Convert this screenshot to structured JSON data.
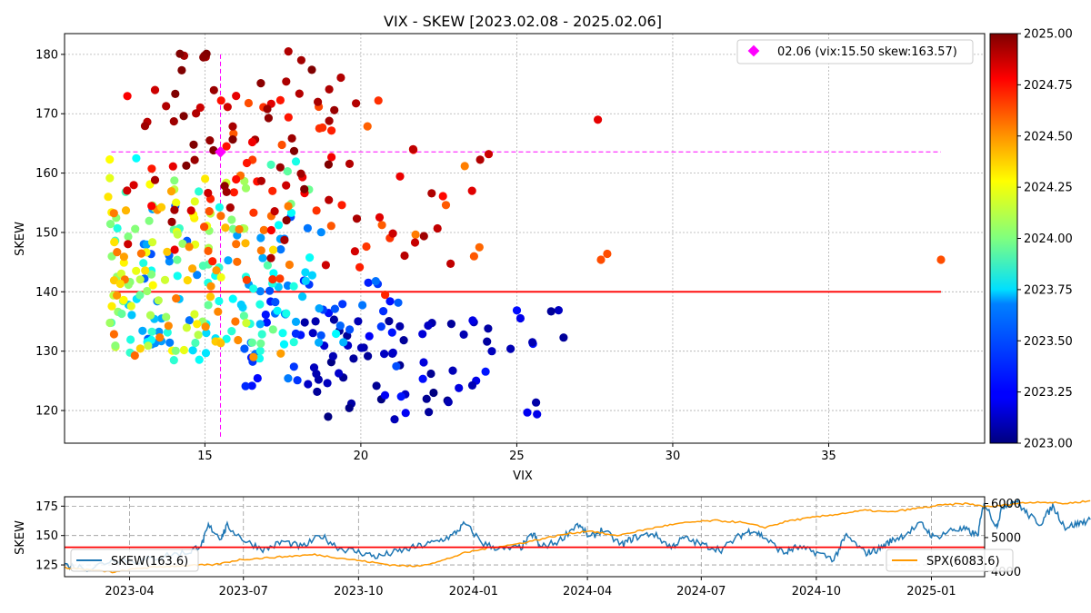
{
  "chart_data": [
    {
      "type": "scatter",
      "title": "VIX - SKEW [2023.02.08 - 2025.02.06]",
      "xlabel": "VIX",
      "ylabel": "SKEW",
      "xlim": [
        10.5,
        40
      ],
      "ylim": [
        114.5,
        183.5
      ],
      "xticks": [
        15,
        20,
        25,
        30,
        35
      ],
      "yticks": [
        120,
        130,
        140,
        150,
        160,
        170,
        180
      ],
      "grid": true,
      "colormap": "jet",
      "colorbar": {
        "range": [
          2023.0,
          2025.0
        ],
        "ticks": [
          "2023.00",
          "2023.25",
          "2023.50",
          "2023.75",
          "2024.00",
          "2024.25",
          "2024.50",
          "2024.75",
          "2025.00"
        ]
      },
      "legend": {
        "position": "top-right",
        "label": "02.06 (vix:15.50 skew:163.57)"
      },
      "current": {
        "vix": 15.5,
        "skew": 163.57,
        "color": "#ff00ff"
      },
      "reference_line": {
        "skew": 140,
        "color": "#ff0000"
      },
      "crosshair_color": "#ff00ff",
      "clusters": [
        {
          "t": [
            2023.0,
            2023.15
          ],
          "vix": [
            18.2,
            22.8
          ],
          "skew": [
            117.5,
            136.5
          ],
          "n": 40
        },
        {
          "t": [
            2023.05,
            2023.3
          ],
          "vix": [
            18.0,
            26.5
          ],
          "skew": [
            119.0,
            137.0
          ],
          "n": 30
        },
        {
          "t": [
            2023.25,
            2023.5
          ],
          "vix": [
            16.3,
            21.5
          ],
          "skew": [
            124.0,
            142.0
          ],
          "n": 35
        },
        {
          "t": [
            2023.4,
            2023.6
          ],
          "vix": [
            13.0,
            19.0
          ],
          "skew": [
            130.0,
            156.0
          ],
          "n": 40
        },
        {
          "t": [
            2023.6,
            2023.85
          ],
          "vix": [
            12.5,
            19.5
          ],
          "skew": [
            128.0,
            145.0
          ],
          "n": 45
        },
        {
          "t": [
            2023.75,
            2024.05
          ],
          "vix": [
            12.0,
            18.5
          ],
          "skew": [
            131.0,
            162.0
          ],
          "n": 45
        },
        {
          "t": [
            2024.0,
            2024.3
          ],
          "vix": [
            11.9,
            16.5
          ],
          "skew": [
            130.0,
            161.0
          ],
          "n": 60
        },
        {
          "t": [
            2024.3,
            2024.55
          ],
          "vix": [
            12.0,
            18.0
          ],
          "skew": [
            129.0,
            158.0
          ],
          "n": 45
        },
        {
          "t": [
            2024.5,
            2024.7
          ],
          "vix": [
            14.8,
            23.8
          ],
          "skew": [
            139.5,
            163.5
          ],
          "n": 15
        },
        {
          "t": [
            2024.55,
            2024.75
          ],
          "vix": [
            15.0,
            21.0
          ],
          "skew": [
            141.0,
            173.0
          ],
          "n": 25
        },
        {
          "t": [
            2024.7,
            2024.95
          ],
          "vix": [
            12.5,
            24.0
          ],
          "skew": [
            144.0,
            174.0
          ],
          "n": 55
        },
        {
          "t": [
            2024.9,
            2025.02
          ],
          "vix": [
            14.0,
            19.5
          ],
          "skew": [
            152.0,
            180.5
          ],
          "n": 35
        }
      ],
      "outliers": [
        {
          "vix": 38.6,
          "skew": 145.4,
          "t": 2024.6
        },
        {
          "vix": 27.7,
          "skew": 145.4,
          "t": 2024.6
        },
        {
          "vix": 27.9,
          "skew": 146.4,
          "t": 2024.6
        },
        {
          "vix": 27.6,
          "skew": 169.0,
          "t": 2024.8
        },
        {
          "vix": 24.1,
          "skew": 163.2,
          "t": 2024.85
        },
        {
          "vix": 23.8,
          "skew": 147.5,
          "t": 2024.55
        },
        {
          "vix": 26.5,
          "skew": 132.3,
          "t": 2023.05
        },
        {
          "vix": 26.1,
          "skew": 136.7,
          "t": 2023.05
        },
        {
          "vix": 25.5,
          "skew": 131.5,
          "t": 2023.1
        },
        {
          "vix": 24.8,
          "skew": 130.4,
          "t": 2023.1
        },
        {
          "vix": 24.2,
          "skew": 130.0,
          "t": 2023.12
        },
        {
          "vix": 23.3,
          "skew": 132.8,
          "t": 2023.1
        },
        {
          "vix": 22.9,
          "skew": 134.6,
          "t": 2023.05
        },
        {
          "vix": 14.2,
          "skew": 180.1,
          "t": 2025.0
        },
        {
          "vix": 15.05,
          "skew": 180.1,
          "t": 2025.0
        },
        {
          "vix": 14.95,
          "skew": 179.5,
          "t": 2024.98
        },
        {
          "vix": 13.4,
          "skew": 174.0,
          "t": 2024.85
        },
        {
          "vix": 16.0,
          "skew": 173.0,
          "t": 2024.8
        },
        {
          "vix": 16.4,
          "skew": 171.8,
          "t": 2024.6
        },
        {
          "vix": 19.15,
          "skew": 170.6,
          "t": 2024.95
        },
        {
          "vix": 17.0,
          "skew": 170.8,
          "t": 2024.95
        },
        {
          "vix": 11.95,
          "skew": 162.3,
          "t": 2024.25
        },
        {
          "vix": 12.8,
          "skew": 162.5,
          "t": 2023.75
        },
        {
          "vix": 11.9,
          "skew": 156.0,
          "t": 2024.3
        }
      ]
    },
    {
      "type": "line",
      "ylabel": "SKEW",
      "x_ticks": [
        "2023-04",
        "2023-07",
        "2023-10",
        "2024-01",
        "2024-04",
        "2024-07",
        "2024-10",
        "2025-01"
      ],
      "x_range": [
        "2023-02-08",
        "2025-02-06"
      ],
      "y_ticks_left": [
        125,
        150,
        175
      ],
      "y_ticks_right": [
        4000,
        5000,
        6000
      ],
      "ylim_left": [
        115,
        183
      ],
      "ylim_right": [
        3850,
        6200
      ],
      "reference_line": {
        "skew": 140,
        "color": "#ff0000"
      },
      "series": [
        {
          "name": "SKEW(163.6)",
          "axis": "left",
          "color": "#1f77b4",
          "values": [
            [
              0,
              125
            ],
            [
              20,
              122
            ],
            [
              40,
              130
            ],
            [
              60,
              128
            ],
            [
              80,
              133
            ],
            [
              100,
              136
            ],
            [
              110,
              143
            ],
            [
              115,
              158
            ],
            [
              125,
              148
            ],
            [
              130,
              158
            ],
            [
              145,
              145
            ],
            [
              160,
              138
            ],
            [
              175,
              145
            ],
            [
              190,
              140
            ],
            [
              205,
              150
            ],
            [
              220,
              139
            ],
            [
              235,
              136
            ],
            [
              250,
              132
            ],
            [
              265,
              136
            ],
            [
              280,
              140
            ],
            [
              295,
              144
            ],
            [
              310,
              150
            ],
            [
              320,
              160
            ],
            [
              335,
              143
            ],
            [
              350,
              138
            ],
            [
              365,
              140
            ],
            [
              375,
              152
            ],
            [
              380,
              140
            ],
            [
              395,
              145
            ],
            [
              410,
              160
            ],
            [
              420,
              148
            ],
            [
              430,
              155
            ],
            [
              445,
              142
            ],
            [
              455,
              148
            ],
            [
              470,
              152
            ],
            [
              485,
              140
            ],
            [
              495,
              148
            ],
            [
              510,
              142
            ],
            [
              525,
              138
            ],
            [
              540,
              150
            ],
            [
              550,
              155
            ],
            [
              560,
              148
            ],
            [
              575,
              135
            ],
            [
              585,
              140
            ],
            [
              600,
              136
            ],
            [
              615,
              130
            ],
            [
              625,
              150
            ],
            [
              640,
              135
            ],
            [
              650,
              138
            ],
            [
              660,
              145
            ],
            [
              670,
              150
            ],
            [
              685,
              160
            ],
            [
              695,
              148
            ],
            [
              710,
              155
            ],
            [
              720,
              155
            ],
            [
              730,
              150
            ],
            [
              735,
              178
            ],
            [
              745,
              158
            ],
            [
              750,
              175
            ],
            [
              760,
              180
            ],
            [
              770,
              168
            ],
            [
              780,
              160
            ],
            [
              790,
              175
            ],
            [
              800,
              157
            ],
            [
              810,
              160
            ],
            [
              820,
              163.6
            ]
          ]
        },
        {
          "name": "SPX(6083.6)",
          "axis": "right",
          "color": "#ff9900",
          "values": [
            [
              0,
              4120
            ],
            [
              20,
              4050
            ],
            [
              40,
              3980
            ],
            [
              60,
              4100
            ],
            [
              80,
              4150
            ],
            [
              100,
              4180
            ],
            [
              120,
              4200
            ],
            [
              140,
              4350
            ],
            [
              160,
              4400
            ],
            [
              180,
              4450
            ],
            [
              200,
              4500
            ],
            [
              220,
              4400
            ],
            [
              240,
              4300
            ],
            [
              260,
              4200
            ],
            [
              280,
              4150
            ],
            [
              300,
              4300
            ],
            [
              320,
              4550
            ],
            [
              340,
              4700
            ],
            [
              360,
              4800
            ],
            [
              380,
              4950
            ],
            [
              400,
              5100
            ],
            [
              420,
              5200
            ],
            [
              440,
              5050
            ],
            [
              460,
              5200
            ],
            [
              480,
              5350
            ],
            [
              500,
              5450
            ],
            [
              520,
              5500
            ],
            [
              540,
              5450
            ],
            [
              560,
              5300
            ],
            [
              580,
              5500
            ],
            [
              600,
              5600
            ],
            [
              620,
              5700
            ],
            [
              640,
              5800
            ],
            [
              660,
              5750
            ],
            [
              680,
              5850
            ],
            [
              700,
              5950
            ],
            [
              720,
              6000
            ],
            [
              740,
              5900
            ],
            [
              760,
              6000
            ],
            [
              780,
              6050
            ],
            [
              800,
              6000
            ],
            [
              820,
              6083.6
            ]
          ]
        }
      ],
      "legend_left": {
        "position": "bottom-left",
        "label": "SKEW(163.6)"
      },
      "legend_right": {
        "position": "bottom-right",
        "label": "SPX(6083.6)"
      }
    }
  ]
}
